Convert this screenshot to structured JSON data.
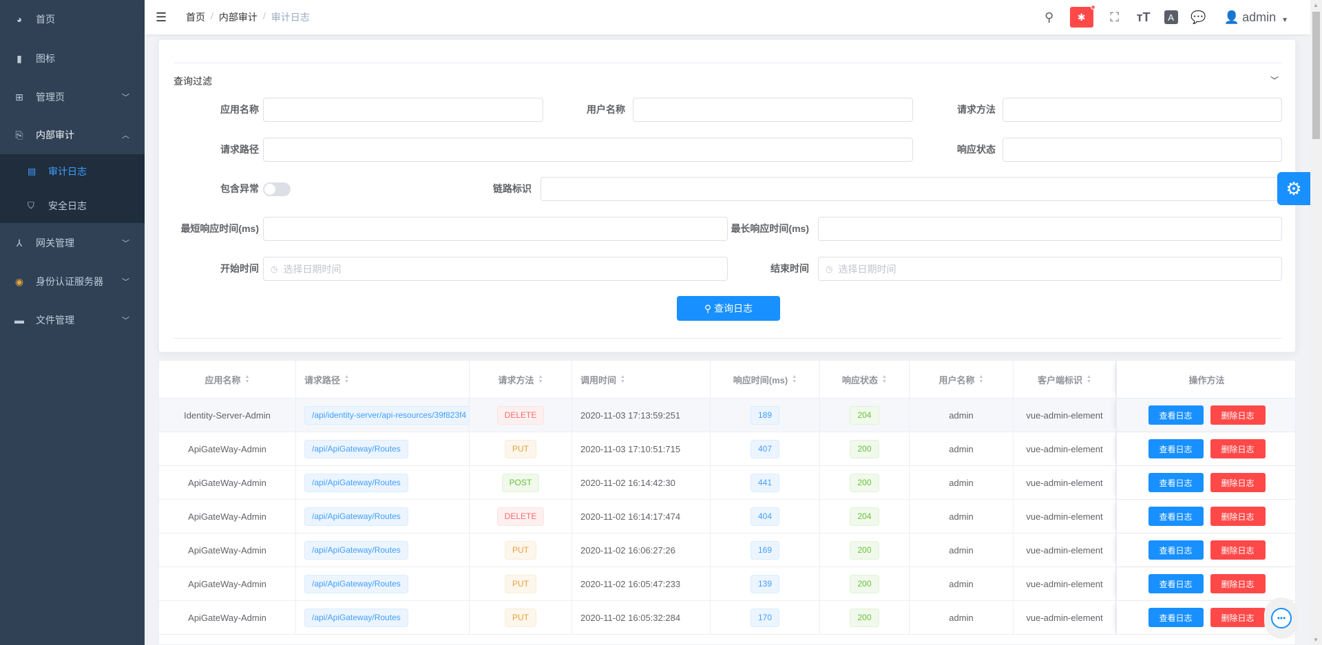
{
  "sidebar": {
    "items": [
      {
        "label": "首页",
        "icon": "dashboard-icon"
      },
      {
        "label": "图标",
        "icon": "icon-icon"
      },
      {
        "label": "管理页",
        "icon": "grid-icon"
      },
      {
        "label": "内部审计",
        "icon": "audit-icon"
      },
      {
        "label": "网关管理",
        "icon": "gateway-icon"
      },
      {
        "label": "身份认证服务器",
        "icon": "identity-icon"
      },
      {
        "label": "文件管理",
        "icon": "folder-icon"
      }
    ],
    "submenu": [
      {
        "label": "审计日志",
        "active": true
      },
      {
        "label": "安全日志"
      }
    ]
  },
  "header": {
    "breadcrumb": [
      "首页",
      "内部审计",
      "审计日志"
    ],
    "user": "admin"
  },
  "filter": {
    "title": "查询过滤",
    "labels": {
      "app_name": "应用名称",
      "user_name": "用户名称",
      "method": "请求方法",
      "path": "请求路径",
      "status": "响应状态",
      "include_exception": "包含异常",
      "trace_id": "链路标识",
      "min_time": "最短响应时间(ms)",
      "max_time": "最长响应时间(ms)",
      "start_time": "开始时间",
      "end_time": "结束时间"
    },
    "date_placeholder": "选择日期时间",
    "include_exception": false,
    "search_button": "查询日志"
  },
  "table": {
    "columns": [
      "应用名称",
      "请求路径",
      "请求方法",
      "调用时间",
      "响应时间(ms)",
      "响应状态",
      "用户名称",
      "客户端标识",
      "操作方法"
    ],
    "view_button": "查看日志",
    "delete_button": "删除日志",
    "rows": [
      {
        "app": "Identity-Server-Admin",
        "path": "/api/identity-server/api-resources/39f823f4",
        "method": "DELETE",
        "time": "2020-11-03 17:13:59:251",
        "duration": "189",
        "status": "204",
        "user": "admin",
        "client": "vue-admin-element"
      },
      {
        "app": "ApiGateWay-Admin",
        "path": "/api/ApiGateway/Routes",
        "method": "PUT",
        "time": "2020-11-03 17:10:51:715",
        "duration": "407",
        "status": "200",
        "user": "admin",
        "client": "vue-admin-element"
      },
      {
        "app": "ApiGateWay-Admin",
        "path": "/api/ApiGateway/Routes",
        "method": "POST",
        "time": "2020-11-02 16:14:42:30",
        "duration": "441",
        "status": "200",
        "user": "admin",
        "client": "vue-admin-element"
      },
      {
        "app": "ApiGateWay-Admin",
        "path": "/api/ApiGateway/Routes",
        "method": "DELETE",
        "time": "2020-11-02 16:14:17:474",
        "duration": "404",
        "status": "204",
        "user": "admin",
        "client": "vue-admin-element"
      },
      {
        "app": "ApiGateWay-Admin",
        "path": "/api/ApiGateway/Routes",
        "method": "PUT",
        "time": "2020-11-02 16:06:27:26",
        "duration": "169",
        "status": "200",
        "user": "admin",
        "client": "vue-admin-element"
      },
      {
        "app": "ApiGateWay-Admin",
        "path": "/api/ApiGateway/Routes",
        "method": "PUT",
        "time": "2020-11-02 16:05:47:233",
        "duration": "139",
        "status": "200",
        "user": "admin",
        "client": "vue-admin-element"
      },
      {
        "app": "ApiGateWay-Admin",
        "path": "/api/ApiGateway/Routes",
        "method": "PUT",
        "time": "2020-11-02 16:05:32:284",
        "duration": "170",
        "status": "200",
        "user": "admin",
        "client": "vue-admin-element"
      }
    ]
  },
  "colors": {
    "sidebar": "#304156",
    "primary": "#1890ff",
    "danger": "#ff4949"
  }
}
